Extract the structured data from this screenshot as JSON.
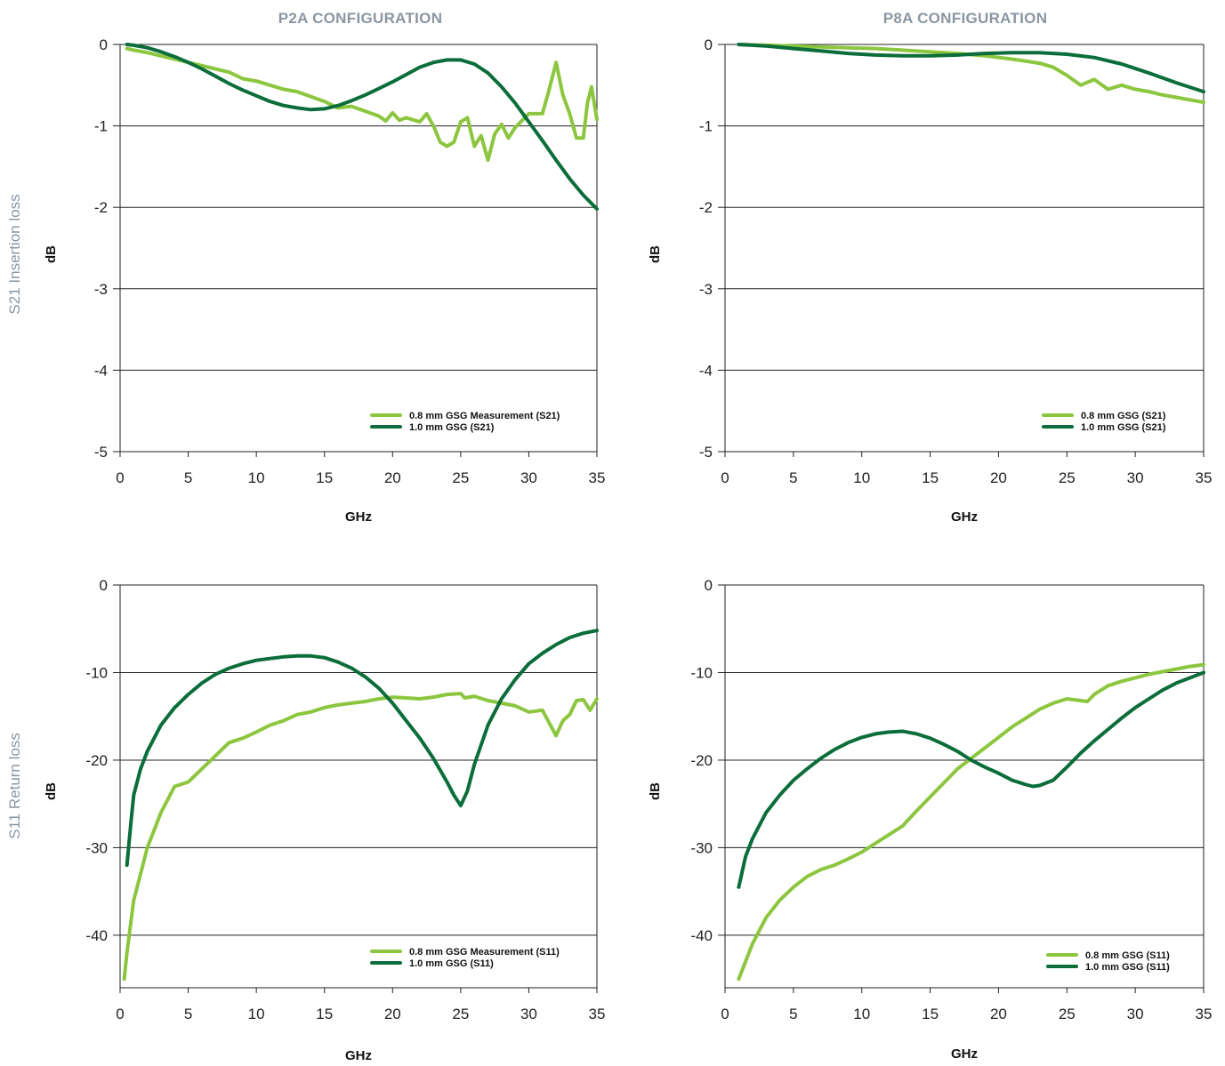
{
  "figure": {
    "column_titles": [
      "P2A CONFIGURATION",
      "P8A CONFIGURATION"
    ],
    "row_titles": [
      "S21 Insertion loss",
      "S11 Return loss"
    ]
  },
  "chart_data": [
    {
      "type": "line",
      "panel": "P2A CONFIGURATION / S21 Insertion loss",
      "xlabel": "GHz",
      "ylabel": "dB",
      "xlim": [
        0,
        35
      ],
      "ylim": [
        -5,
        0
      ],
      "xticks": [
        0,
        5,
        10,
        15,
        20,
        25,
        30,
        35
      ],
      "yticks": [
        0,
        -1,
        -2,
        -3,
        -4,
        -5
      ],
      "grid": "horizontal",
      "legend": "bottom-right",
      "series": [
        {
          "name": "0.8 mm GSG Measurement (S21)",
          "color": "#8cc63f",
          "x": [
            0.5,
            1,
            2,
            3,
            4,
            5,
            6,
            7,
            8,
            9,
            10,
            11,
            12,
            13,
            14,
            15,
            16,
            17,
            18,
            19,
            19.5,
            20,
            20.5,
            21,
            22,
            22.5,
            23,
            23.5,
            24,
            24.5,
            25,
            25.5,
            26,
            26.5,
            27,
            27.5,
            28,
            28.5,
            29,
            30,
            31,
            31.5,
            32,
            32.5,
            33,
            33.5,
            34,
            34.3,
            34.6,
            35
          ],
          "y": [
            -0.05,
            -0.07,
            -0.1,
            -0.14,
            -0.18,
            -0.22,
            -0.26,
            -0.3,
            -0.34,
            -0.42,
            -0.45,
            -0.5,
            -0.55,
            -0.58,
            -0.64,
            -0.7,
            -0.78,
            -0.76,
            -0.82,
            -0.88,
            -0.94,
            -0.84,
            -0.93,
            -0.9,
            -0.95,
            -0.85,
            -1.0,
            -1.2,
            -1.25,
            -1.2,
            -0.95,
            -0.9,
            -1.25,
            -1.12,
            -1.42,
            -1.1,
            -0.98,
            -1.15,
            -1.02,
            -0.85,
            -0.85,
            -0.55,
            -0.22,
            -0.62,
            -0.85,
            -1.15,
            -1.15,
            -0.72,
            -0.52,
            -0.92
          ]
        },
        {
          "name": "1.0 mm GSG (S21)",
          "color": "#0a6d3a",
          "x": [
            0.5,
            1,
            2,
            3,
            4,
            5,
            6,
            7,
            8,
            9,
            10,
            11,
            12,
            13,
            14,
            15,
            16,
            17,
            18,
            19,
            20,
            21,
            22,
            23,
            24,
            25,
            26,
            27,
            28,
            29,
            30,
            31,
            32,
            33,
            34,
            35
          ],
          "y": [
            0,
            -0.01,
            -0.04,
            -0.09,
            -0.15,
            -0.22,
            -0.3,
            -0.39,
            -0.48,
            -0.56,
            -0.63,
            -0.7,
            -0.75,
            -0.78,
            -0.8,
            -0.79,
            -0.75,
            -0.69,
            -0.62,
            -0.54,
            -0.46,
            -0.37,
            -0.28,
            -0.22,
            -0.19,
            -0.19,
            -0.24,
            -0.35,
            -0.52,
            -0.72,
            -0.95,
            -1.18,
            -1.42,
            -1.65,
            -1.85,
            -2.02
          ]
        }
      ]
    },
    {
      "type": "line",
      "panel": "P8A CONFIGURATION / S21 Insertion loss",
      "xlabel": "GHz",
      "ylabel": "dB",
      "xlim": [
        0,
        35
      ],
      "ylim": [
        -5,
        0
      ],
      "xticks": [
        0,
        5,
        10,
        15,
        20,
        25,
        30,
        35
      ],
      "yticks": [
        0,
        -1,
        -2,
        -3,
        -4,
        -5
      ],
      "grid": "horizontal",
      "legend": "bottom-right",
      "series": [
        {
          "name": "0.8 mm GSG (S21)",
          "color": "#8cc63f",
          "x": [
            1,
            3,
            5,
            7,
            9,
            11,
            13,
            15,
            17,
            19,
            21,
            23,
            24,
            25,
            26,
            27,
            28,
            29,
            30,
            31,
            32,
            33,
            34,
            35
          ],
          "y": [
            0,
            -0.01,
            -0.02,
            -0.03,
            -0.04,
            -0.05,
            -0.07,
            -0.09,
            -0.11,
            -0.14,
            -0.18,
            -0.23,
            -0.28,
            -0.38,
            -0.5,
            -0.43,
            -0.55,
            -0.5,
            -0.55,
            -0.58,
            -0.62,
            -0.65,
            -0.68,
            -0.71
          ]
        },
        {
          "name": "1.0 mm GSG (S21)",
          "color": "#0a6d3a",
          "x": [
            1,
            3,
            5,
            7,
            9,
            11,
            13,
            15,
            17,
            19,
            21,
            23,
            25,
            27,
            29,
            31,
            33,
            35
          ],
          "y": [
            0,
            -0.02,
            -0.05,
            -0.08,
            -0.11,
            -0.13,
            -0.14,
            -0.14,
            -0.13,
            -0.11,
            -0.1,
            -0.1,
            -0.12,
            -0.16,
            -0.24,
            -0.35,
            -0.47,
            -0.58
          ]
        }
      ]
    },
    {
      "type": "line",
      "panel": "P2A CONFIGURATION / S11 Return loss",
      "xlabel": "GHz",
      "ylabel": "dB",
      "xlim": [
        0,
        35
      ],
      "ylim": [
        -46,
        0
      ],
      "xticks": [
        0,
        5,
        10,
        15,
        20,
        25,
        30,
        35
      ],
      "yticks": [
        0,
        -10,
        -20,
        -30,
        -40
      ],
      "grid": "horizontal",
      "legend": "bottom-right",
      "series": [
        {
          "name": "0.8 mm GSG Measurement (S11)",
          "color": "#8cc63f",
          "x": [
            0.3,
            0.5,
            1,
            1.5,
            2,
            2.5,
            3,
            4,
            5,
            6,
            7,
            8,
            9,
            10,
            11,
            12,
            13,
            14,
            15,
            16,
            17,
            18,
            19,
            20,
            21,
            22,
            23,
            24,
            25,
            25.3,
            26,
            27,
            28,
            29,
            30,
            31,
            32,
            32.5,
            33,
            33.5,
            34,
            34.5,
            35
          ],
          "y": [
            -45,
            -42,
            -36,
            -33,
            -30,
            -28,
            -26,
            -23,
            -22.5,
            -21,
            -19.5,
            -18,
            -17.5,
            -16.8,
            -16,
            -15.5,
            -14.8,
            -14.5,
            -14,
            -13.7,
            -13.5,
            -13.3,
            -13,
            -12.8,
            -12.9,
            -13,
            -12.8,
            -12.5,
            -12.4,
            -12.9,
            -12.7,
            -13.2,
            -13.5,
            -13.8,
            -14.5,
            -14.3,
            -17.2,
            -15.5,
            -14.8,
            -13.2,
            -13.1,
            -14.3,
            -13
          ]
        },
        {
          "name": "1.0 mm GSG (S11)",
          "color": "#0a6d3a",
          "x": [
            0.5,
            0.8,
            1,
            1.5,
            2,
            3,
            4,
            5,
            6,
            7,
            8,
            9,
            10,
            11,
            12,
            13,
            14,
            15,
            16,
            17,
            18,
            19,
            20,
            21,
            22,
            23,
            24,
            24.5,
            25,
            25.5,
            26,
            27,
            28,
            29,
            30,
            31,
            32,
            33,
            34,
            35
          ],
          "y": [
            -32,
            -27,
            -24,
            -21,
            -19,
            -16,
            -14,
            -12.5,
            -11.2,
            -10.2,
            -9.5,
            -9,
            -8.6,
            -8.4,
            -8.2,
            -8.1,
            -8.1,
            -8.3,
            -8.8,
            -9.5,
            -10.5,
            -11.8,
            -13.5,
            -15.5,
            -17.5,
            -19.8,
            -22.5,
            -24,
            -25.2,
            -23.5,
            -20.5,
            -16,
            -13,
            -10.8,
            -9,
            -7.8,
            -6.8,
            -6,
            -5.5,
            -5.2
          ]
        }
      ]
    },
    {
      "type": "line",
      "panel": "P8A CONFIGURATION / S11 Return loss",
      "xlabel": "GHz",
      "ylabel": "dB",
      "xlim": [
        0,
        35
      ],
      "ylim": [
        -46,
        0
      ],
      "xticks": [
        0,
        5,
        10,
        15,
        20,
        25,
        30,
        35
      ],
      "yticks": [
        0,
        -10,
        -20,
        -30,
        -40
      ],
      "grid": "horizontal",
      "legend": "bottom-right",
      "series": [
        {
          "name": "0.8 mm GSG (S11)",
          "color": "#8cc63f",
          "x": [
            1,
            1.5,
            2,
            3,
            4,
            5,
            6,
            7,
            8,
            9,
            10,
            11,
            12,
            13,
            14,
            15,
            16,
            17,
            18,
            19,
            20,
            21,
            22,
            23,
            24,
            25,
            26,
            26.5,
            27,
            28,
            29,
            30,
            31,
            32,
            33,
            34,
            35
          ],
          "y": [
            -45,
            -43,
            -41,
            -38,
            -36,
            -34.5,
            -33.3,
            -32.5,
            -32,
            -31.3,
            -30.5,
            -29.5,
            -28.5,
            -27.5,
            -25.8,
            -24.2,
            -22.6,
            -21,
            -19.8,
            -18.6,
            -17.4,
            -16.2,
            -15.2,
            -14.2,
            -13.5,
            -13,
            -13.2,
            -13.3,
            -12.5,
            -11.5,
            -11,
            -10.6,
            -10.2,
            -9.9,
            -9.6,
            -9.3,
            -9.1
          ]
        },
        {
          "name": "1.0 mm GSG (S11)",
          "color": "#0a6d3a",
          "x": [
            1,
            1.5,
            2,
            3,
            4,
            5,
            6,
            7,
            8,
            9,
            10,
            11,
            12,
            13,
            14,
            15,
            16,
            17,
            18,
            19,
            20,
            21,
            22,
            22.5,
            23,
            24,
            25,
            26,
            27,
            28,
            29,
            30,
            31,
            32,
            33,
            34,
            35
          ],
          "y": [
            -34.5,
            -31,
            -29,
            -26,
            -24,
            -22.3,
            -21,
            -19.8,
            -18.8,
            -18,
            -17.4,
            -17,
            -16.8,
            -16.7,
            -17,
            -17.5,
            -18.2,
            -19,
            -20,
            -20.8,
            -21.5,
            -22.3,
            -22.8,
            -23,
            -22.9,
            -22.3,
            -20.8,
            -19.2,
            -17.8,
            -16.5,
            -15.2,
            -14,
            -13,
            -12,
            -11.2,
            -10.6,
            -10
          ]
        }
      ]
    }
  ]
}
